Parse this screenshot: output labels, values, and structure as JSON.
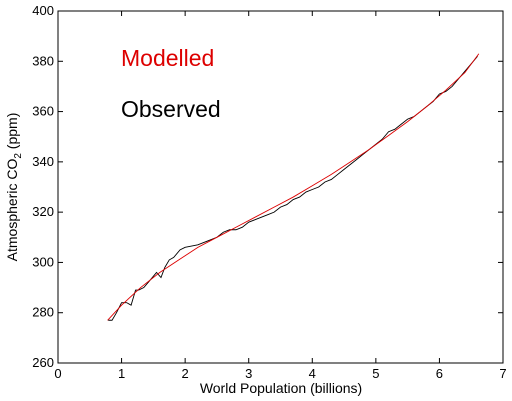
{
  "chart_data": {
    "type": "line",
    "title": "",
    "xlabel": "World Population (billions)",
    "ylabel_main": "Atmospheric CO",
    "ylabel_sub": "2",
    "ylabel_unit": " (ppm)",
    "xlim": [
      0,
      7
    ],
    "ylim": [
      260,
      400
    ],
    "x_ticks": [
      0,
      1,
      2,
      3,
      4,
      5,
      6,
      7
    ],
    "y_ticks": [
      260,
      280,
      300,
      320,
      340,
      360,
      380,
      400
    ],
    "grid": false,
    "legend_position": "top-left",
    "series": [
      {
        "name": "Observed",
        "color": "#000000",
        "x": [
          0.79,
          0.85,
          0.92,
          1.0,
          1.08,
          1.15,
          1.22,
          1.27,
          1.35,
          1.45,
          1.55,
          1.62,
          1.68,
          1.75,
          1.82,
          1.92,
          2.0,
          2.1,
          2.2,
          2.3,
          2.4,
          2.5,
          2.6,
          2.7,
          2.8,
          2.9,
          3.0,
          3.1,
          3.2,
          3.3,
          3.4,
          3.5,
          3.6,
          3.7,
          3.8,
          3.9,
          4.0,
          4.1,
          4.2,
          4.3,
          4.4,
          4.5,
          4.6,
          4.7,
          4.8,
          4.9,
          5.0,
          5.1,
          5.2,
          5.3,
          5.4,
          5.5,
          5.6,
          5.7,
          5.8,
          5.9,
          6.0,
          6.1,
          6.2,
          6.3,
          6.4,
          6.5,
          6.6
        ],
        "y": [
          277,
          277,
          280,
          284,
          284,
          283,
          289,
          289,
          290,
          293,
          296,
          294,
          298,
          301,
          302,
          305,
          306,
          306.5,
          307,
          308,
          309,
          310,
          312,
          313,
          313,
          314,
          316,
          317,
          318,
          319,
          320,
          322,
          323,
          325,
          326,
          328,
          329,
          330,
          332,
          333,
          335,
          337,
          339,
          341,
          343,
          345,
          347,
          349,
          352,
          353,
          355,
          357,
          358,
          360,
          362,
          364,
          367,
          368,
          370,
          373,
          376,
          379,
          382
        ]
      },
      {
        "name": "Modelled",
        "color": "#dd0000",
        "x": [
          0.78,
          1.0,
          1.3,
          1.6,
          1.9,
          2.2,
          2.5,
          2.8,
          3.1,
          3.4,
          3.7,
          4.0,
          4.3,
          4.6,
          4.9,
          5.2,
          5.5,
          5.8,
          6.1,
          6.4,
          6.62
        ],
        "y": [
          277,
          283,
          290,
          296,
          301,
          306,
          310,
          314,
          318,
          322,
          326,
          330.5,
          335,
          340,
          345,
          350.5,
          356,
          362,
          368.5,
          375.5,
          383
        ]
      }
    ],
    "legend_labels": [
      "Modelled",
      "Observed"
    ]
  }
}
